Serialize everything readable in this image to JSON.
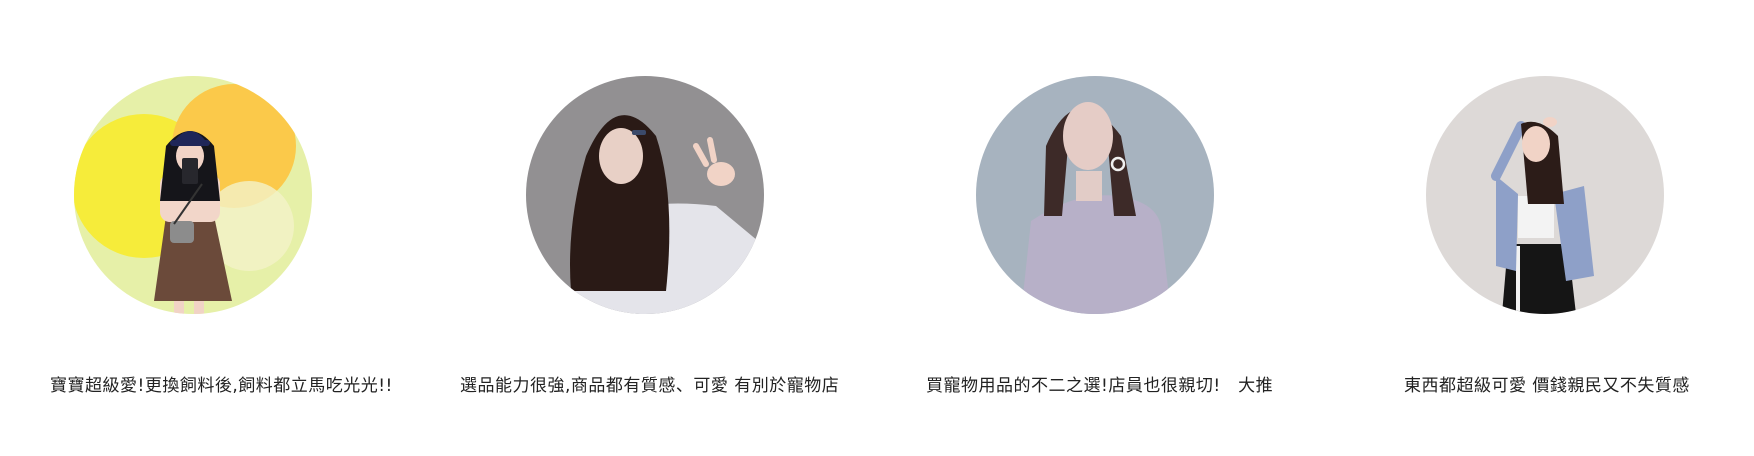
{
  "testimonials": [
    {
      "quote": "寶寶超級愛!更換飼料後,飼料都立馬吃光光!!",
      "avatar_icon": "illustrated-woman-cap-selfie-icon",
      "avatar_bg": "#e6f0a8"
    },
    {
      "quote": "選品能力很強,商品都有質感、可愛 有別於寵物店",
      "avatar_icon": "illustrated-woman-long-wavy-hair-icon",
      "avatar_bg": "#929092"
    },
    {
      "quote": "買寵物用品的不二之選!店員也很親切!　大推",
      "avatar_icon": "illustrated-woman-earrings-icon",
      "avatar_bg": "#a7b3bf"
    },
    {
      "quote": "東西都超級可愛 價錢親民又不失質感",
      "avatar_icon": "illustrated-woman-denim-jacket-icon",
      "avatar_bg": "#ddd9d7"
    }
  ]
}
